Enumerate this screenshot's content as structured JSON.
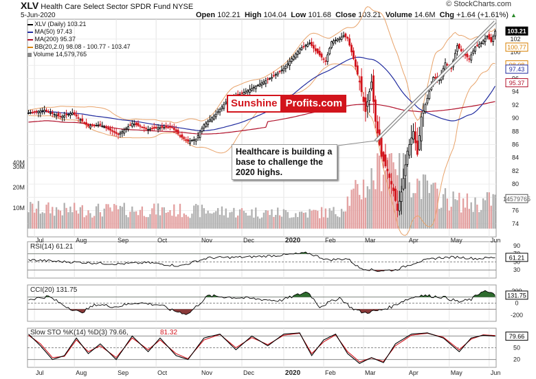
{
  "header": {
    "symbol": "XLV",
    "name": "Health Care Select Sector SPDR Fund",
    "exchange": "NYSE",
    "date": "5-Jun-2020",
    "open_label": "Open",
    "open": "102.21",
    "high_label": "High",
    "high": "104.04",
    "low_label": "Low",
    "low": "101.68",
    "close_label": "Close",
    "close": "103.21",
    "volume_label": "Volume",
    "volume": "14.6M",
    "chg_label": "Chg",
    "chg": "+1.64 (+1.61%)",
    "chg_icon": "up-triangle-icon",
    "source": "© StockCharts.com"
  },
  "legend": [
    {
      "label": "XLV (Daily) 103.21",
      "color": "#000000"
    },
    {
      "label": "MA(50) 97.43",
      "color": "#1f2a9e"
    },
    {
      "label": "MA(200) 95.37",
      "color": "#b0102a"
    },
    {
      "label": "BB(20,2.0) 98.08 - 100.77 - 103.47",
      "color": "#d88000"
    },
    {
      "label": "Volume 14,579,765",
      "color": "#888888"
    }
  ],
  "brand": {
    "part1": "Sunshine",
    "part2": "Profits.com"
  },
  "annotation": "Healthcare is building a base to challenge the 2020 highs.",
  "colors": {
    "up": "#000000",
    "down": "#d2141c",
    "bb": "#e8a36a",
    "ma50": "#1f2a9e",
    "ma200": "#b0102a",
    "volume": "#b0b0b0",
    "volume_down": "#e3a0a0",
    "positive_fill": "#2e6b2e",
    "negative_fill": "#8a3a3a",
    "stoch_k": "#000000",
    "stoch_d": "#d2141c"
  },
  "chart_data": [
    {
      "type": "candlestick",
      "title": "XLV (Daily) 103.21",
      "months": [
        "Jul",
        "Aug",
        "Sep",
        "Oct",
        "Nov",
        "Dec",
        "2020",
        "Feb",
        "Mar",
        "Apr",
        "May",
        "Jun"
      ],
      "price_ticks": [
        74,
        76,
        78,
        80,
        82,
        84,
        86,
        88,
        90,
        92,
        94,
        96,
        98,
        100,
        102
      ],
      "price_ylim": [
        72,
        105
      ],
      "volume_ticks": [
        "10M",
        "20M",
        "30M",
        "40M"
      ],
      "volume_unit": "M",
      "last_price_label": "103.21",
      "price_markers": [
        {
          "label": "100.77",
          "value": 100.77,
          "color": "#d88000"
        },
        {
          "label": "98.08",
          "value": 98.08,
          "color": "#d88000"
        },
        {
          "label": "97.43",
          "value": 97.43,
          "color": "#1f2a9e"
        },
        {
          "label": "95.37",
          "value": 95.37,
          "color": "#b0102a"
        }
      ],
      "volume_marker": {
        "label": "14579765",
        "value": 14.58
      },
      "close_keypoints": [
        [
          0,
          90.8
        ],
        [
          8,
          91.2
        ],
        [
          16,
          90.2
        ],
        [
          22,
          90.8
        ],
        [
          30,
          88.8
        ],
        [
          36,
          89.0
        ],
        [
          45,
          87.5
        ],
        [
          52,
          89.2
        ],
        [
          60,
          88.3
        ],
        [
          66,
          88.6
        ],
        [
          72,
          88.6
        ],
        [
          76,
          87.3
        ],
        [
          80,
          86.5
        ],
        [
          84,
          86.8
        ],
        [
          88,
          89.0
        ],
        [
          94,
          90.6
        ],
        [
          100,
          92.8
        ],
        [
          108,
          93.9
        ],
        [
          115,
          95.0
        ],
        [
          122,
          96.2
        ],
        [
          128,
          97.5
        ],
        [
          132,
          99.0
        ],
        [
          136,
          100.5
        ],
        [
          141,
          101.4
        ],
        [
          144,
          100.2
        ],
        [
          149,
          98.6
        ],
        [
          152,
          101.6
        ],
        [
          156,
          102.1
        ],
        [
          158,
          102.5
        ],
        [
          160,
          102.1
        ],
        [
          163,
          99.0
        ],
        [
          166,
          95.5
        ],
        [
          169,
          91.0
        ],
        [
          172,
          95.5
        ],
        [
          174,
          89.5
        ],
        [
          177,
          84.2
        ],
        [
          180,
          82.0
        ],
        [
          183,
          79.0
        ],
        [
          185,
          76.0
        ],
        [
          187,
          78.8
        ],
        [
          190,
          85.0
        ],
        [
          193,
          88.0
        ],
        [
          195,
          84.5
        ],
        [
          197,
          90.2
        ],
        [
          200,
          93.0
        ],
        [
          203,
          96.2
        ],
        [
          206,
          95.8
        ],
        [
          209,
          98.4
        ],
        [
          212,
          97.5
        ],
        [
          215,
          101.0
        ],
        [
          218,
          99.8
        ],
        [
          221,
          99.0
        ],
        [
          224,
          100.8
        ],
        [
          227,
          101.4
        ],
        [
          230,
          102.4
        ],
        [
          232,
          101.6
        ],
        [
          234,
          103.2
        ]
      ],
      "volume_keypoints": [
        [
          0,
          10
        ],
        [
          20,
          9
        ],
        [
          60,
          9
        ],
        [
          90,
          8.5
        ],
        [
          130,
          7.5
        ],
        [
          155,
          8
        ],
        [
          160,
          14
        ],
        [
          170,
          22
        ],
        [
          176,
          28
        ],
        [
          183,
          40
        ],
        [
          187,
          30
        ],
        [
          195,
          22
        ],
        [
          205,
          16
        ],
        [
          215,
          13
        ],
        [
          225,
          12
        ],
        [
          234,
          14.6
        ]
      ]
    },
    {
      "type": "line",
      "title": "RSI(14) 61.21",
      "yticks": [
        30,
        50,
        70,
        90
      ],
      "value_label": "61.21",
      "keypoints": [
        [
          0,
          55
        ],
        [
          20,
          50
        ],
        [
          45,
          45
        ],
        [
          60,
          48
        ],
        [
          76,
          40
        ],
        [
          90,
          60
        ],
        [
          110,
          62
        ],
        [
          125,
          66
        ],
        [
          140,
          72
        ],
        [
          150,
          55
        ],
        [
          160,
          58
        ],
        [
          166,
          35
        ],
        [
          175,
          28
        ],
        [
          184,
          30
        ],
        [
          195,
          50
        ],
        [
          205,
          60
        ],
        [
          215,
          62
        ],
        [
          225,
          58
        ],
        [
          234,
          61.2
        ]
      ]
    },
    {
      "type": "line",
      "title": "CCI(20) 131.75",
      "yticks": [
        -200,
        0,
        200
      ],
      "value_label": "131.75",
      "keypoints": [
        [
          0,
          60
        ],
        [
          10,
          110
        ],
        [
          18,
          -40
        ],
        [
          26,
          -160
        ],
        [
          34,
          -20
        ],
        [
          44,
          -60
        ],
        [
          54,
          10
        ],
        [
          66,
          -30
        ],
        [
          72,
          -120
        ],
        [
          80,
          -180
        ],
        [
          90,
          120
        ],
        [
          110,
          80
        ],
        [
          126,
          40
        ],
        [
          140,
          190
        ],
        [
          146,
          -60
        ],
        [
          156,
          90
        ],
        [
          162,
          -80
        ],
        [
          168,
          -160
        ],
        [
          176,
          -120
        ],
        [
          182,
          -60
        ],
        [
          188,
          40
        ],
        [
          196,
          130
        ],
        [
          208,
          100
        ],
        [
          216,
          20
        ],
        [
          222,
          60
        ],
        [
          228,
          210
        ],
        [
          234,
          131.75
        ]
      ]
    },
    {
      "type": "line",
      "title": "Slow STO %K(14) %D(3) 79.66, 81.32",
      "yticks": [
        20,
        50,
        80
      ],
      "value_label": "79.66",
      "series": [
        {
          "name": "%K(14)",
          "keypoints": [
            [
              0,
              85
            ],
            [
              6,
              55
            ],
            [
              12,
              20
            ],
            [
              18,
              30
            ],
            [
              24,
              75
            ],
            [
              30,
              35
            ],
            [
              36,
              60
            ],
            [
              44,
              20
            ],
            [
              52,
              80
            ],
            [
              60,
              40
            ],
            [
              66,
              75
            ],
            [
              74,
              30
            ],
            [
              80,
              20
            ],
            [
              88,
              75
            ],
            [
              96,
              85
            ],
            [
              104,
              45
            ],
            [
              112,
              80
            ],
            [
              120,
              55
            ],
            [
              128,
              85
            ],
            [
              136,
              88
            ],
            [
              142,
              30
            ],
            [
              148,
              70
            ],
            [
              154,
              85
            ],
            [
              160,
              35
            ],
            [
              166,
              10
            ],
            [
              172,
              25
            ],
            [
              178,
              12
            ],
            [
              184,
              60
            ],
            [
              192,
              85
            ],
            [
              200,
              88
            ],
            [
              208,
              75
            ],
            [
              216,
              40
            ],
            [
              222,
              75
            ],
            [
              228,
              82
            ],
            [
              234,
              79.66
            ]
          ]
        },
        {
          "name": "%D(3)",
          "keypoints": [
            [
              0,
              82
            ],
            [
              6,
              60
            ],
            [
              12,
              25
            ],
            [
              18,
              28
            ],
            [
              24,
              70
            ],
            [
              30,
              40
            ],
            [
              36,
              55
            ],
            [
              44,
              25
            ],
            [
              52,
              75
            ],
            [
              60,
              45
            ],
            [
              66,
              70
            ],
            [
              74,
              35
            ],
            [
              80,
              22
            ],
            [
              88,
              70
            ],
            [
              96,
              84
            ],
            [
              104,
              50
            ],
            [
              112,
              76
            ],
            [
              120,
              58
            ],
            [
              128,
              82
            ],
            [
              136,
              87
            ],
            [
              142,
              35
            ],
            [
              148,
              65
            ],
            [
              154,
              83
            ],
            [
              160,
              40
            ],
            [
              166,
              14
            ],
            [
              172,
              24
            ],
            [
              178,
              15
            ],
            [
              184,
              55
            ],
            [
              192,
              82
            ],
            [
              200,
              87
            ],
            [
              208,
              77
            ],
            [
              216,
              45
            ],
            [
              222,
              72
            ],
            [
              228,
              83
            ],
            [
              234,
              81.32
            ]
          ]
        }
      ]
    }
  ]
}
